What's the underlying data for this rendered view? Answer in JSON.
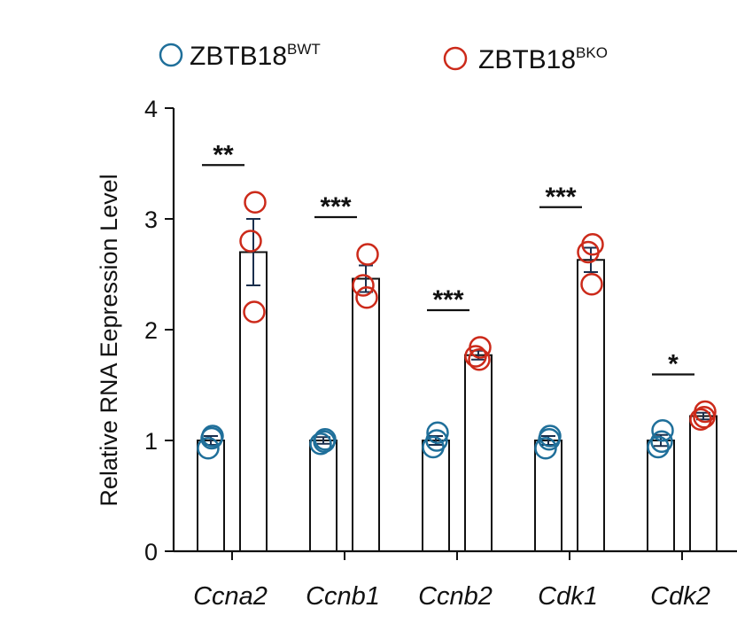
{
  "chart_data": {
    "type": "bar",
    "ylabel": "Relative RNA Eepression Level",
    "xlabel": "",
    "ylim": [
      0,
      4
    ],
    "yticks": [
      0,
      1,
      2,
      3,
      4
    ],
    "categories": [
      "Ccna2",
      "Ccnb1",
      "Ccnb2",
      "Cdk1",
      "Cdk2"
    ],
    "series": [
      {
        "name": "ZBTB18",
        "superscript": "BWT",
        "color": "#1f6f9a",
        "values": [
          1.0,
          1.0,
          1.0,
          1.0,
          1.0
        ],
        "errors": [
          0.04,
          0.03,
          0.04,
          0.04,
          0.05
        ],
        "points": [
          [
            1.04,
            0.93,
            1.02
          ],
          [
            1.01,
            0.97,
            0.99
          ],
          [
            1.07,
            0.94,
            1.0
          ],
          [
            1.04,
            0.93,
            1.01
          ],
          [
            1.09,
            0.94,
            0.99
          ]
        ]
      },
      {
        "name": "ZBTB18",
        "superscript": "BKO",
        "color": "#cc2a1a",
        "values": [
          2.7,
          2.46,
          1.77,
          2.63,
          1.22
        ],
        "errors": [
          0.3,
          0.12,
          0.04,
          0.11,
          0.03
        ],
        "points": [
          [
            3.15,
            2.8,
            2.16
          ],
          [
            2.68,
            2.4,
            2.29
          ],
          [
            1.84,
            1.76,
            1.73
          ],
          [
            2.77,
            2.7,
            2.41
          ],
          [
            1.26,
            1.19,
            1.21
          ]
        ]
      }
    ],
    "significance": [
      "**",
      "***",
      "***",
      "***",
      "*"
    ],
    "legend_position": "top"
  }
}
